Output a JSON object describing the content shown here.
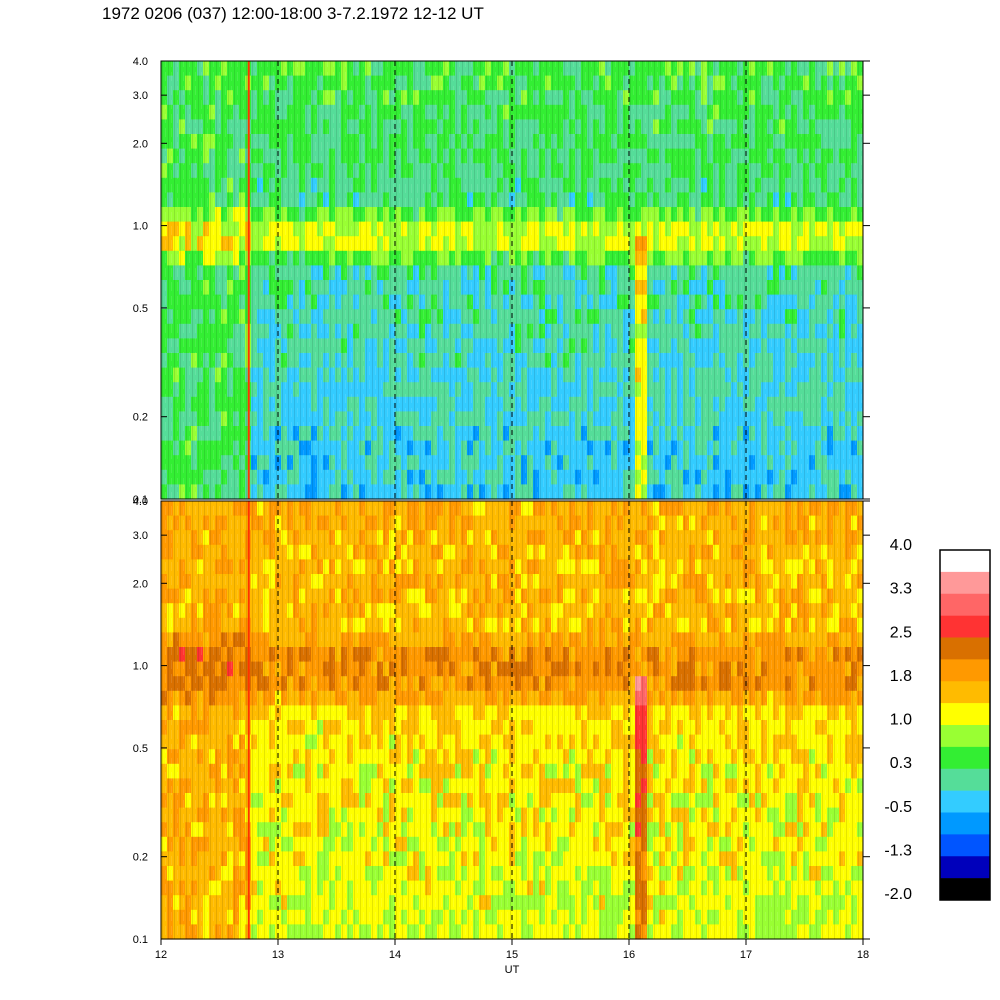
{
  "header": {
    "title": "1972 0206 (037) 12:00-18:00 3-7.2.1972  12-12 UT"
  },
  "chart_data": [
    {
      "type": "heatmap",
      "panel": "upper",
      "x_range": [
        12,
        18
      ],
      "y_range": [
        0.1,
        4.0
      ],
      "y_scale": "log",
      "y_ticks": [
        "0.1",
        "0.2",
        "0.5",
        "1.0",
        "2.0",
        "3.0",
        "4.0"
      ],
      "x_ticks": [],
      "event_markers_ut": [
        12.75,
        13.0,
        14.0,
        15.0,
        16.0,
        17.0
      ],
      "band": {
        "freq": 0.9,
        "level": 1.0
      },
      "background_low_level": -0.3,
      "background_high_level": 0.4
    },
    {
      "type": "heatmap",
      "panel": "lower",
      "x_range": [
        12,
        18
      ],
      "y_range": [
        0.1,
        4.0
      ],
      "y_scale": "log",
      "y_ticks": [
        "0.1",
        "0.2",
        "0.5",
        "1.0",
        "2.0",
        "3.0",
        "4.0"
      ],
      "x_ticks": [
        "12",
        "13",
        "14",
        "15",
        "16",
        "17",
        "18"
      ],
      "xlabel": "UT",
      "event_markers_ut": [
        12.75,
        13.0,
        14.0,
        15.0,
        16.0,
        17.0
      ],
      "band": {
        "freq": 0.95,
        "level": 2.0
      },
      "background_low_level": 1.0,
      "background_high_level": 1.7
    }
  ],
  "colorbar": {
    "labels": [
      "4.0",
      "3.3",
      "2.5",
      "1.8",
      "1.0",
      "0.3",
      "-0.5",
      "-1.3",
      "-2.0"
    ],
    "colors_top_to_bottom": [
      "#ffffff",
      "#ff9999",
      "#ff6666",
      "#ff3333",
      "#d97000",
      "#ff9900",
      "#ffbb00",
      "#ffff00",
      "#99ff33",
      "#33ee33",
      "#55dd99",
      "#33ccff",
      "#0099ff",
      "#0055ff",
      "#0000bb",
      "#000000"
    ]
  }
}
